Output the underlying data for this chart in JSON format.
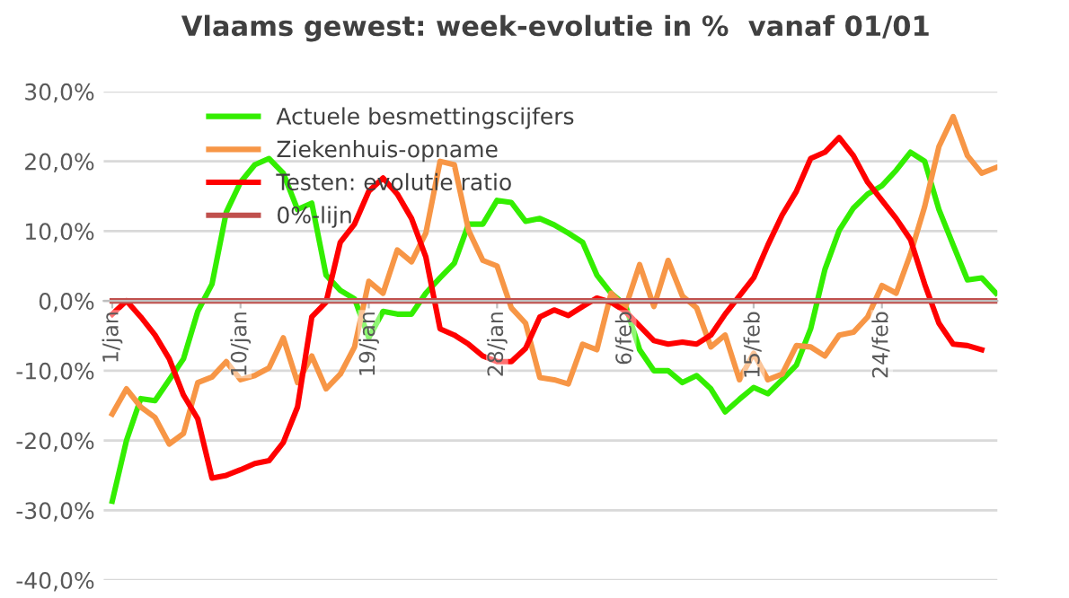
{
  "chart_data": {
    "type": "line",
    "title": "Vlaams gewest: week-evolutie in %  vanaf 01/01",
    "categories": [
      "1/jan",
      null,
      null,
      null,
      null,
      null,
      null,
      null,
      null,
      "10/jan",
      null,
      null,
      null,
      null,
      null,
      null,
      null,
      null,
      "19/jan",
      null,
      null,
      null,
      null,
      null,
      null,
      null,
      null,
      "28/jan",
      null,
      null,
      null,
      null,
      null,
      null,
      null,
      null,
      "6/feb",
      null,
      null,
      null,
      null,
      null,
      null,
      null,
      null,
      "15/feb",
      null,
      null,
      null,
      null,
      null,
      null,
      null,
      null,
      "24/feb",
      null,
      null,
      null,
      null,
      null,
      null,
      null,
      null
    ],
    "series": [
      {
        "name": "Actuele besmettingscijfers",
        "color": "#33ee00",
        "values": [
          -28.7,
          -20,
          -14,
          -14.3,
          -11.3,
          -8.3,
          -1.5,
          2.4,
          12.7,
          17,
          19.5,
          20.4,
          18.3,
          13.1,
          14,
          3.7,
          1.5,
          0.3,
          -5.3,
          -1.5,
          -1.9,
          -1.9,
          1.1,
          3.3,
          5.4,
          11,
          11,
          14.4,
          14.1,
          11.4,
          11.8,
          10.9,
          9.7,
          8.4,
          3.7,
          1.1,
          -0.6,
          -7,
          -10,
          -10,
          -11.7,
          -10.7,
          -12.6,
          -15.9,
          -14.1,
          -12.4,
          -13.3,
          -11.3,
          -9.2,
          -4,
          4.5,
          10.1,
          13.3,
          15.3,
          16.5,
          18.7,
          21.3,
          20,
          13.1,
          8,
          3,
          3.3,
          1.1
        ]
      },
      {
        "name": "Ziekenhuis-opname",
        "color": "#f79646",
        "values": [
          -16.2,
          -12.6,
          -15.2,
          -16.7,
          -20.5,
          -19,
          -11.7,
          -10.9,
          -8.7,
          -11.3,
          -10.7,
          -9.6,
          -5.3,
          -11.7,
          -7.9,
          -12.6,
          -10.5,
          -6.6,
          2.8,
          1.1,
          7.3,
          5.6,
          9.7,
          20,
          19.5,
          10.1,
          5.8,
          5,
          -1,
          -3.2,
          -11,
          -11.3,
          -11.9,
          -6.2,
          -7,
          1.1,
          -1,
          5.2,
          -0.8,
          5.8,
          0.7,
          -1,
          -6.6,
          -4.9,
          -11.3,
          -7.5,
          -11.3,
          -10.5,
          -6.4,
          -6.6,
          -7.9,
          -4.9,
          -4.5,
          -2.3,
          2.2,
          1.1,
          6.7,
          13.5,
          22.1,
          26.4,
          20.8,
          18.3,
          19.1
        ]
      },
      {
        "name": "Testen: evolutie ratio",
        "color": "#ff0000",
        "values": [
          -1.9,
          0,
          -2.3,
          -4.9,
          -8.3,
          -13.5,
          -16.9,
          -25.4,
          -25,
          -24.2,
          -23.3,
          -22.9,
          -20.3,
          -15.2,
          -2.3,
          -0.2,
          8.4,
          11,
          15.7,
          17.6,
          15.3,
          11.8,
          6.3,
          -4,
          -4.9,
          -6.2,
          -7.9,
          -8.7,
          -8.7,
          -6.8,
          -2.3,
          -1.3,
          -2.1,
          -0.8,
          0.4,
          -0.2,
          -1.5,
          -3.6,
          -5.7,
          -6.2,
          -5.9,
          -6.2,
          -4.9,
          -1.9,
          0.7,
          3.3,
          8,
          12.3,
          15.7,
          20.4,
          21.3,
          23.4,
          20.8,
          17,
          14.4,
          11.8,
          8.8,
          2.4,
          -3.2,
          -6.2,
          -6.4,
          -7,
          null
        ]
      },
      {
        "name": "0%-lijn",
        "color": "#c0504d",
        "values": [
          0,
          0,
          0,
          0,
          0,
          0,
          0,
          0,
          0,
          0,
          0,
          0,
          0,
          0,
          0,
          0,
          0,
          0,
          0,
          0,
          0,
          0,
          0,
          0,
          0,
          0,
          0,
          0,
          0,
          0,
          0,
          0,
          0,
          0,
          0,
          0,
          0,
          0,
          0,
          0,
          0,
          0,
          0,
          0,
          0,
          0,
          0,
          0,
          0,
          0,
          0,
          0,
          0,
          0,
          0,
          0,
          0,
          0,
          0,
          0,
          0,
          0,
          0
        ]
      }
    ],
    "ylim": [
      -40,
      30
    ],
    "yticks": [
      {
        "value": -40,
        "label": "-40,0%"
      },
      {
        "value": -30,
        "label": "-30,0%"
      },
      {
        "value": -20,
        "label": "-20,0%"
      },
      {
        "value": -10,
        "label": "-10,0%"
      },
      {
        "value": 0,
        "label": "0,0%"
      },
      {
        "value": 10,
        "label": "10,0%"
      },
      {
        "value": 20,
        "label": "20,0%"
      },
      {
        "value": 30,
        "label": "30,0%"
      }
    ],
    "grid": "y",
    "legend": "top left",
    "marker": "none",
    "line_style": "solid"
  }
}
